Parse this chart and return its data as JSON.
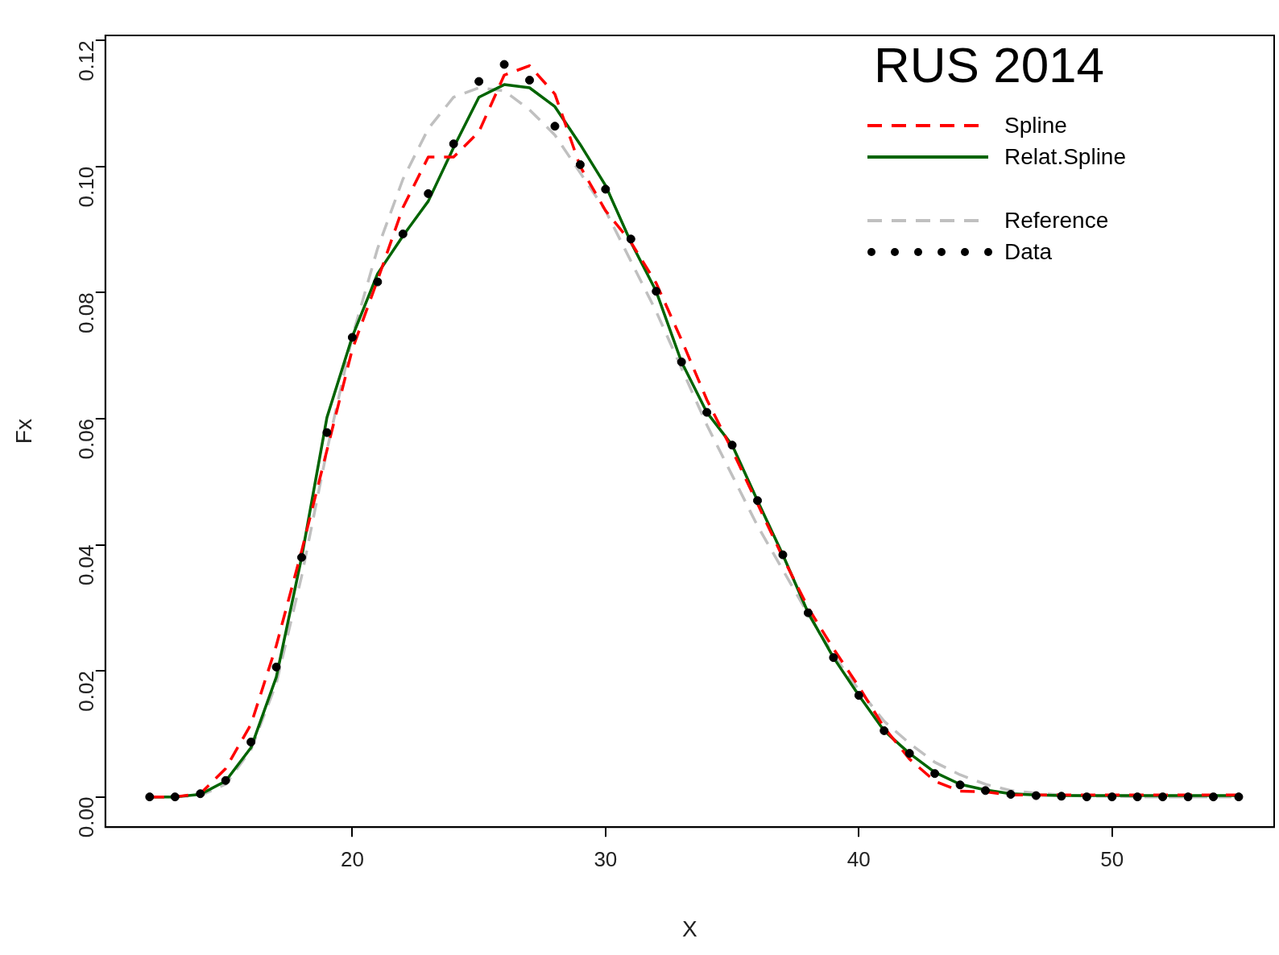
{
  "chart_data": {
    "type": "line",
    "title": "RUS 2014",
    "xlabel": "X",
    "ylabel": "Fx",
    "xlim": [
      10.25,
      56.4
    ],
    "ylim": [
      -0.0048,
      0.1208
    ],
    "xticks": [
      20,
      30,
      40,
      50
    ],
    "yticks": [
      {
        "value": 0,
        "label": "0.00"
      },
      {
        "value": 0.02,
        "label": "0.02"
      },
      {
        "value": 0.04,
        "label": "0.04"
      },
      {
        "value": 0.06,
        "label": "0.06"
      },
      {
        "value": 0.08,
        "label": "0.08"
      },
      {
        "value": 0.1,
        "label": "0.10"
      },
      {
        "value": 0.12,
        "label": "0.12"
      }
    ],
    "grid": false,
    "legend": "top right",
    "x": [
      12,
      13,
      14,
      15,
      16,
      17,
      18,
      19,
      20,
      21,
      22,
      23,
      24,
      25,
      26,
      27,
      28,
      29,
      30,
      31,
      32,
      33,
      34,
      35,
      36,
      37,
      38,
      39,
      40,
      41,
      42,
      43,
      44,
      45,
      46,
      47,
      48,
      49,
      50,
      51,
      52,
      53,
      54,
      55
    ],
    "series": [
      {
        "name": "Spline",
        "type": "line",
        "color": "#ff0000",
        "line_style": "dashed",
        "marker": "none",
        "values": [
          0,
          0,
          0.0005,
          0.0045,
          0.0115,
          0.024,
          0.039,
          0.055,
          0.071,
          0.082,
          0.0935,
          0.1015,
          0.1015,
          0.1055,
          0.1145,
          0.116,
          0.1115,
          0.1,
          0.093,
          0.088,
          0.0815,
          0.0725,
          0.063,
          0.055,
          0.0465,
          0.038,
          0.03,
          0.0235,
          0.0175,
          0.011,
          0.006,
          0.0025,
          0.0009,
          0.0008,
          0.0003,
          0.0003,
          0.0003,
          0.0003,
          0.0003,
          0.0003,
          0.0003,
          0.0003,
          0.0003,
          0.0003
        ]
      },
      {
        "name": "Relat.Spline",
        "type": "line",
        "color": "#006400",
        "line_style": "solid",
        "marker": "none",
        "values": [
          0,
          0,
          0.0004,
          0.0025,
          0.0078,
          0.019,
          0.038,
          0.0602,
          0.073,
          0.083,
          0.089,
          0.0945,
          0.103,
          0.111,
          0.113,
          0.1125,
          0.1095,
          0.1035,
          0.097,
          0.088,
          0.0802,
          0.069,
          0.061,
          0.0558,
          0.047,
          0.0384,
          0.0292,
          0.0221,
          0.0161,
          0.0105,
          0.0069,
          0.0039,
          0.002,
          0.0011,
          0.0005,
          0.0003,
          0.0002,
          0.0002,
          0.0002,
          0.0002,
          0.0002,
          0.0002,
          0.0002,
          0.0002
        ]
      },
      {
        "name": "Reference",
        "type": "line",
        "color": "#c0c0c0",
        "line_style": "dashed",
        "marker": "none",
        "values": [
          0,
          0,
          0.0002,
          0.002,
          0.0075,
          0.018,
          0.035,
          0.055,
          0.073,
          0.087,
          0.098,
          0.106,
          0.111,
          0.1125,
          0.112,
          0.109,
          0.105,
          0.099,
          0.093,
          0.085,
          0.077,
          0.068,
          0.059,
          0.051,
          0.043,
          0.036,
          0.029,
          0.0225,
          0.017,
          0.012,
          0.0085,
          0.0055,
          0.0035,
          0.002,
          0.001,
          0.0006,
          0.0003,
          0.0001,
          0.0001,
          0,
          0,
          0,
          0,
          0
        ]
      },
      {
        "name": "Data",
        "type": "scatter",
        "color": "#000000",
        "marker": "circle",
        "values": [
          0,
          0,
          0.0005,
          0.0026,
          0.0087,
          0.0206,
          0.038,
          0.0578,
          0.0729,
          0.0817,
          0.0893,
          0.0957,
          0.1036,
          0.1135,
          0.1162,
          0.1137,
          0.1064,
          0.1003,
          0.0964,
          0.0885,
          0.0802,
          0.069,
          0.061,
          0.0558,
          0.047,
          0.0384,
          0.0292,
          0.0221,
          0.0161,
          0.0105,
          0.0069,
          0.0037,
          0.0019,
          0.001,
          0.0004,
          0.0002,
          0.0001,
          0,
          0,
          0,
          0,
          0,
          0,
          0
        ]
      }
    ]
  }
}
